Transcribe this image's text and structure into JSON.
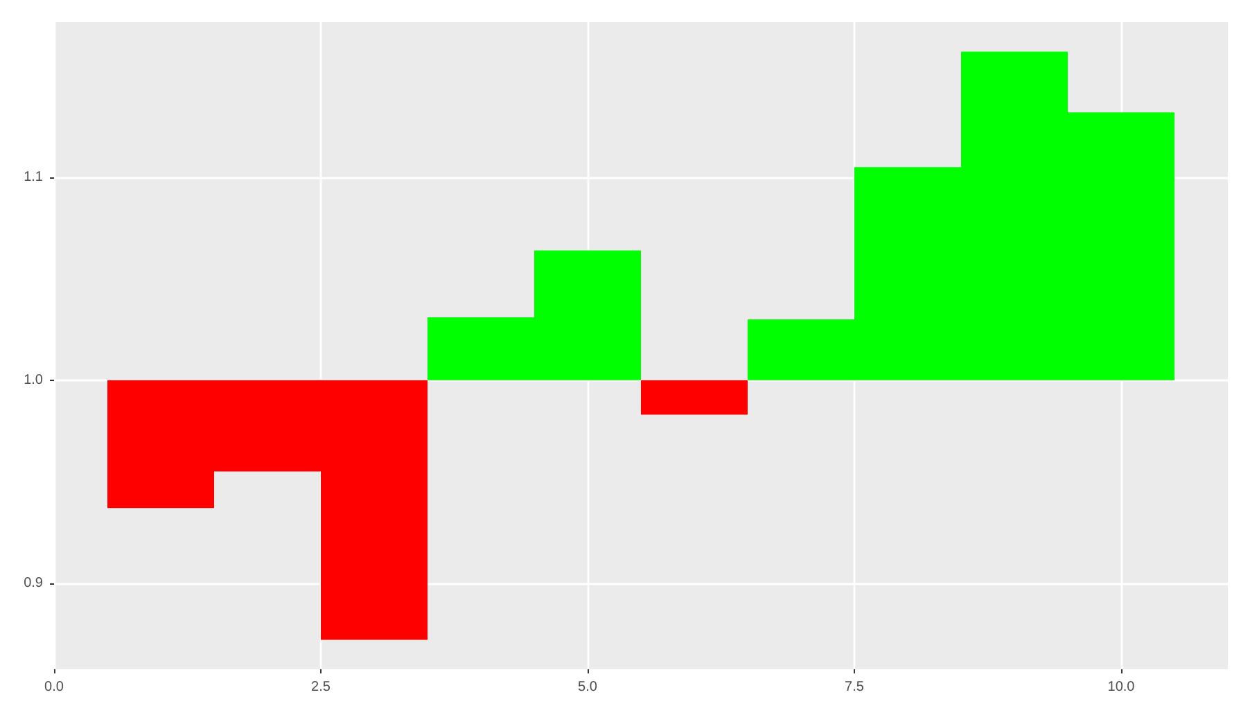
{
  "chart_data": {
    "type": "bar",
    "x": [
      1,
      2,
      3,
      4,
      5,
      6,
      7,
      8,
      9,
      10
    ],
    "base": [
      1,
      1,
      1,
      1,
      1,
      1,
      1,
      1,
      1,
      1
    ],
    "values": [
      -0.063,
      -0.045,
      -0.128,
      0.031,
      0.064,
      -0.017,
      0.03,
      0.105,
      0.162,
      0.132
    ],
    "colors": [
      "#ff0000",
      "#ff0000",
      "#ff0000",
      "#00ff00",
      "#00ff00",
      "#ff0000",
      "#00ff00",
      "#00ff00",
      "#00ff00",
      "#00ff00"
    ],
    "xlim": [
      0,
      11
    ],
    "xticks": [
      {
        "value": 0,
        "label": "0.0"
      },
      {
        "value": 2.5,
        "label": "2.5"
      },
      {
        "value": 5,
        "label": "5.0"
      },
      {
        "value": 7.5,
        "label": "7.5"
      },
      {
        "value": 10,
        "label": "10.0"
      }
    ],
    "ylim": [
      0.8575,
      1.1765
    ],
    "yticks": [
      {
        "value": 0.9,
        "label": "0.9"
      },
      {
        "value": 1.0,
        "label": "1.0"
      },
      {
        "value": 1.1,
        "label": "1.1"
      }
    ],
    "grid": true
  }
}
